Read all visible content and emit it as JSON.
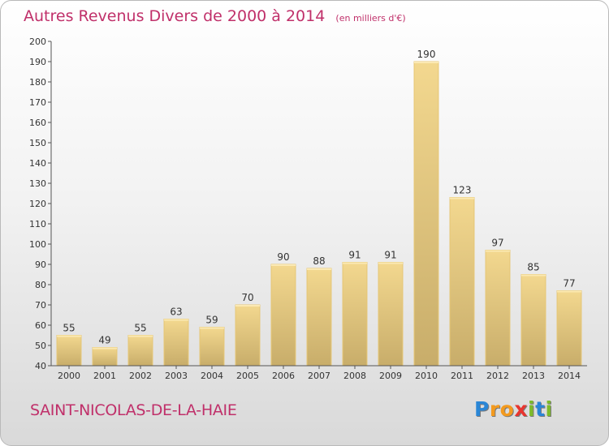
{
  "chart_data": {
    "type": "bar",
    "title": "Autres Revenus Divers de 2000 à 2014",
    "subtitle": "(en milliers d'€)",
    "categories": [
      "2000",
      "2001",
      "2002",
      "2003",
      "2004",
      "2005",
      "2006",
      "2007",
      "2008",
      "2009",
      "2010",
      "2011",
      "2012",
      "2013",
      "2014"
    ],
    "values": [
      55,
      49,
      55,
      63,
      59,
      70,
      90,
      88,
      91,
      91,
      190,
      123,
      97,
      85,
      77
    ],
    "ylim": [
      40,
      200
    ],
    "yticks": [
      40,
      50,
      60,
      70,
      80,
      90,
      100,
      110,
      120,
      130,
      140,
      150,
      160,
      170,
      180,
      190,
      200
    ],
    "xlabel": "",
    "ylabel": "",
    "grid": false,
    "bar_color": "#f0cf82"
  },
  "commune": "SAINT-NICOLAS-DE-LA-HAIE",
  "logo": {
    "letters": [
      "P",
      "r",
      "o",
      "x",
      "i",
      "t",
      "i"
    ],
    "colors": [
      "#2a86d6",
      "#f39a1e",
      "#f39a1e",
      "#e8352f",
      "#7dbb2a",
      "#2a86d6",
      "#7dbb2a"
    ]
  }
}
